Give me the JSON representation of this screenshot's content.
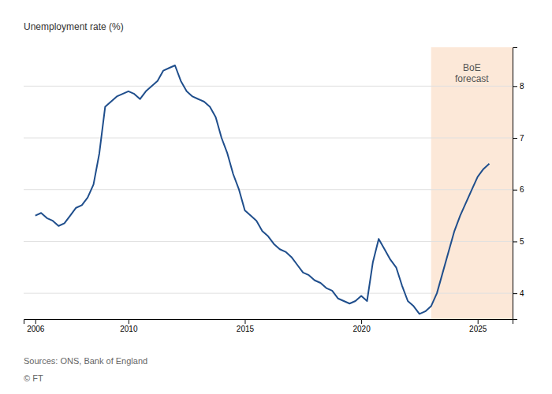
{
  "chart_data": {
    "type": "line",
    "y_label": "Unemployment rate (%)",
    "sources": "Sources: ONS, Bank of England",
    "copyright": "© FT",
    "forecast": {
      "start": 2023.0,
      "end": 2026.5,
      "label": "BoE\nforecast",
      "color": "#fce8d8"
    },
    "color": "#1f4e8c",
    "grid": true,
    "xlim": [
      2005.5,
      2026.5
    ],
    "xticks": [
      2006,
      2010,
      2015,
      2020,
      2025
    ],
    "ylim": [
      3.5,
      8.75
    ],
    "yticks": [
      4,
      5,
      6,
      7,
      8
    ],
    "x": [
      2006.0,
      2006.25,
      2006.5,
      2006.75,
      2007.0,
      2007.25,
      2007.5,
      2007.75,
      2008.0,
      2008.25,
      2008.5,
      2008.75,
      2009.0,
      2009.25,
      2009.5,
      2009.75,
      2010.0,
      2010.25,
      2010.5,
      2010.75,
      2011.0,
      2011.25,
      2011.5,
      2011.75,
      2012.0,
      2012.25,
      2012.5,
      2012.75,
      2013.0,
      2013.25,
      2013.5,
      2013.75,
      2014.0,
      2014.25,
      2014.5,
      2014.75,
      2015.0,
      2015.25,
      2015.5,
      2015.75,
      2016.0,
      2016.25,
      2016.5,
      2016.75,
      2017.0,
      2017.25,
      2017.5,
      2017.75,
      2018.0,
      2018.25,
      2018.5,
      2018.75,
      2019.0,
      2019.25,
      2019.5,
      2019.75,
      2020.0,
      2020.25,
      2020.5,
      2020.75,
      2021.0,
      2021.25,
      2021.5,
      2021.75,
      2022.0,
      2022.25,
      2022.5,
      2022.75,
      2023.0,
      2023.25,
      2023.5,
      2023.75,
      2024.0,
      2024.25,
      2024.5,
      2024.75,
      2025.0,
      2025.25,
      2025.5
    ],
    "values": [
      5.5,
      5.55,
      5.45,
      5.4,
      5.3,
      5.35,
      5.5,
      5.65,
      5.7,
      5.85,
      6.1,
      6.7,
      7.6,
      7.7,
      7.8,
      7.85,
      7.9,
      7.85,
      7.75,
      7.9,
      8.0,
      8.1,
      8.3,
      8.35,
      8.4,
      8.1,
      7.9,
      7.8,
      7.75,
      7.7,
      7.6,
      7.4,
      7.0,
      6.7,
      6.3,
      6.0,
      5.6,
      5.5,
      5.4,
      5.2,
      5.1,
      4.95,
      4.85,
      4.8,
      4.7,
      4.55,
      4.4,
      4.35,
      4.25,
      4.2,
      4.1,
      4.05,
      3.9,
      3.85,
      3.8,
      3.85,
      3.95,
      3.85,
      4.6,
      5.05,
      4.85,
      4.65,
      4.5,
      4.15,
      3.85,
      3.75,
      3.6,
      3.65,
      3.75,
      4.0,
      4.4,
      4.8,
      5.2,
      5.5,
      5.75,
      6.0,
      6.25,
      6.4,
      6.5
    ]
  }
}
